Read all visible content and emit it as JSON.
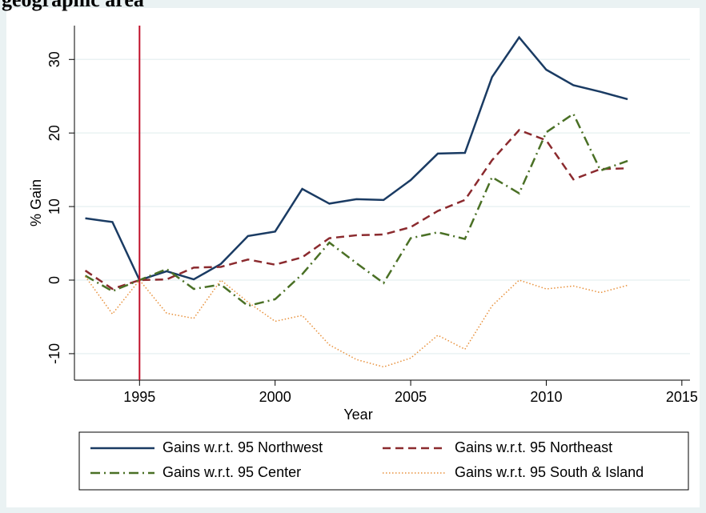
{
  "chart_data": {
    "type": "line",
    "title": "geographic area",
    "x": [
      1993,
      1994,
      1995,
      1996,
      1997,
      1998,
      1999,
      2000,
      2001,
      2002,
      2003,
      2004,
      2005,
      2006,
      2007,
      2008,
      2009,
      2010,
      2011,
      2012,
      2013
    ],
    "series": [
      {
        "name": "Gains w.r.t. 95 Northwest",
        "color": "#1a3b63",
        "style": "solid",
        "values": [
          8.4,
          7.9,
          0,
          1.2,
          0.1,
          2.2,
          6.0,
          6.6,
          12.4,
          10.4,
          11.0,
          10.9,
          13.6,
          17.2,
          17.3,
          27.6,
          33.0,
          28.6,
          26.5,
          25.6,
          24.6
        ]
      },
      {
        "name": "Gains w.r.t. 95 Northeast",
        "color": "#8b2a2e",
        "style": "dash",
        "values": [
          1.3,
          -1.2,
          0,
          0.1,
          1.7,
          1.8,
          2.8,
          2.1,
          3.1,
          5.7,
          6.1,
          6.2,
          7.2,
          9.4,
          10.9,
          16.3,
          20.4,
          19.0,
          13.7,
          15.1,
          15.2
        ]
      },
      {
        "name": "Gains w.r.t. 95 Center",
        "color": "#4a7025",
        "style": "dashdot",
        "values": [
          0.6,
          -1.5,
          0,
          1.5,
          -1.2,
          -0.6,
          -3.5,
          -2.6,
          0.8,
          5.1,
          2.3,
          -0.4,
          5.7,
          6.5,
          5.6,
          14.0,
          11.8,
          20.1,
          22.6,
          14.9,
          16.2
        ]
      },
      {
        "name": "Gains w.r.t. 95 South & Island",
        "color": "#e8903a",
        "style": "dot",
        "values": [
          0.5,
          -4.6,
          0,
          -4.5,
          -5.2,
          0,
          -3.0,
          -5.6,
          -4.8,
          -8.8,
          -10.8,
          -11.8,
          -10.6,
          -7.5,
          -9.4,
          -3.5,
          0,
          -1.2,
          -0.8,
          -1.7,
          -0.7
        ]
      }
    ],
    "x_label": "Year",
    "y_label": "% Gain",
    "xlim": [
      1992.6,
      2015.3
    ],
    "xticks": [
      1995,
      2000,
      2005,
      2010,
      2015
    ],
    "ylim": [
      -13.6,
      34.6
    ],
    "yticks": [
      -10,
      0,
      10,
      20,
      30
    ],
    "vline": 1995,
    "vline_color": "#c0102a",
    "grid": true,
    "legend": "bottom"
  }
}
